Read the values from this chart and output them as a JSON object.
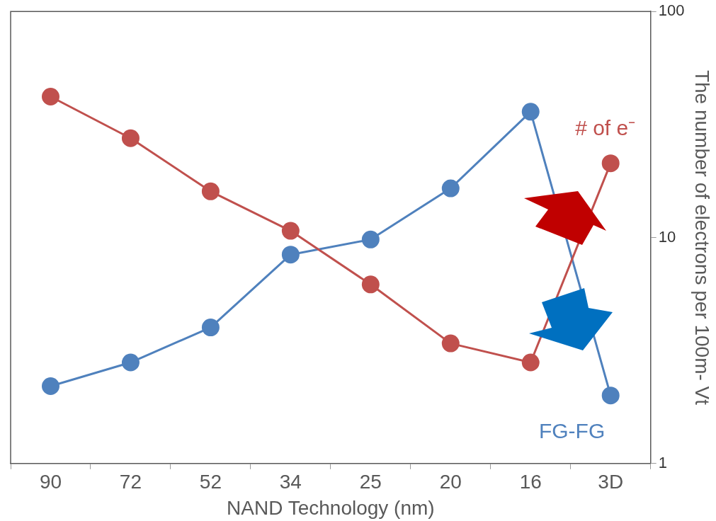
{
  "chart_data": {
    "type": "line",
    "xlabel": "NAND Technology (nm)",
    "ylabel": "The number of electrons per 100m- Vt",
    "categories": [
      "90",
      "72",
      "52",
      "34",
      "25",
      "20",
      "16",
      "3D"
    ],
    "series": [
      {
        "name": "# of e⁻",
        "color": "#c0504d",
        "values": [
          42,
          27.5,
          16,
          10.7,
          6.2,
          3.4,
          2.8,
          21.3
        ]
      },
      {
        "name": "FG-FG",
        "color": "#4f81bd",
        "values": [
          2.2,
          2.8,
          4.0,
          8.4,
          9.8,
          16.5,
          36,
          2.0
        ]
      }
    ],
    "log": "y",
    "ylim": [
      1,
      100
    ],
    "yticks": [
      1,
      10,
      100
    ],
    "grid": false,
    "legend": false,
    "marker": "circle",
    "line_style": "solid"
  }
}
